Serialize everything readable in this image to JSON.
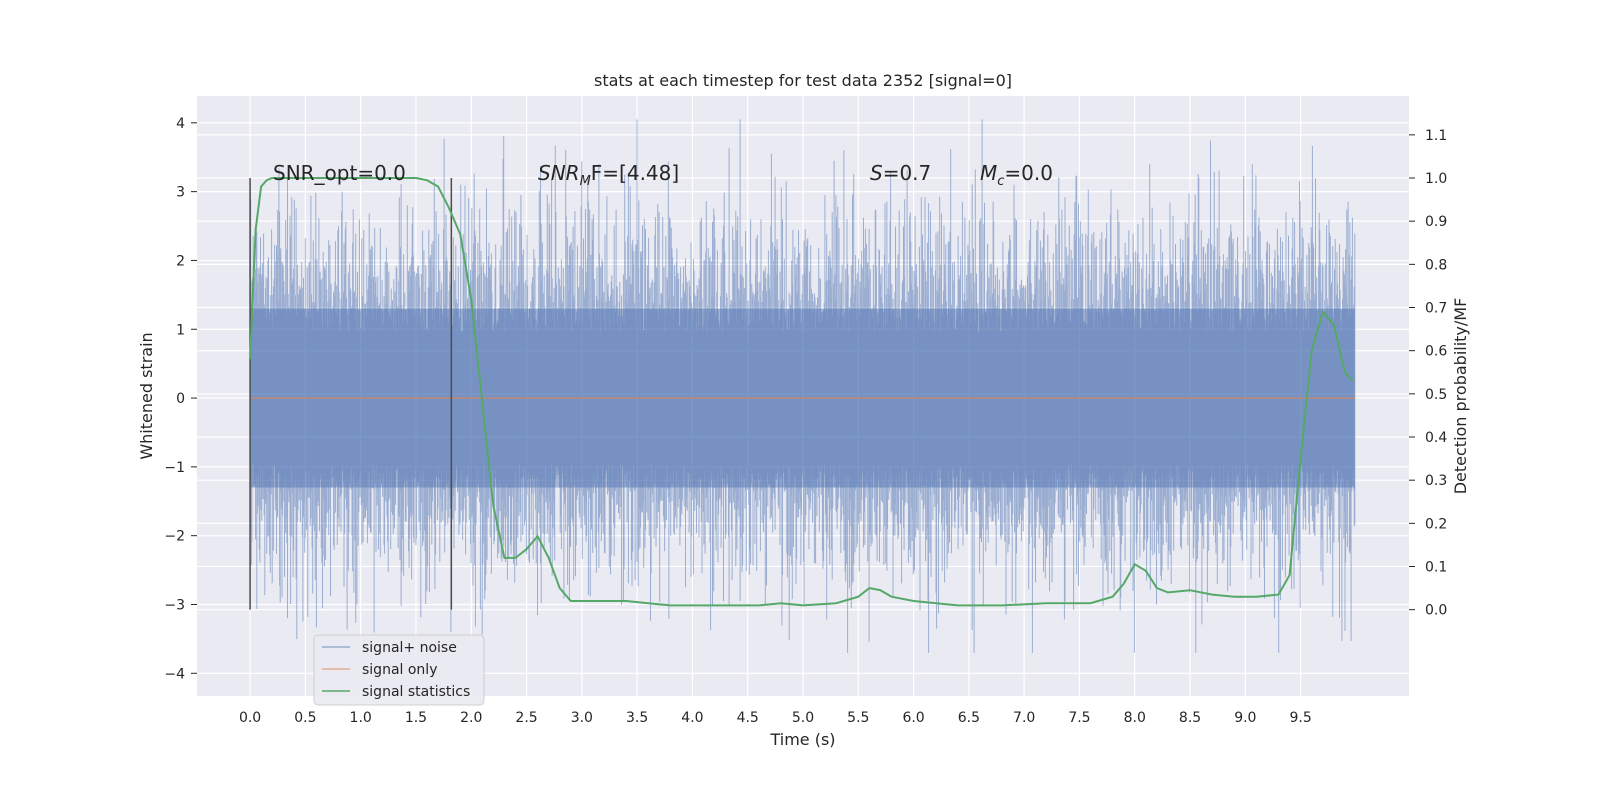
{
  "chart_data": {
    "type": "line",
    "title": "stats at each timestep for test data 2352 [signal=0]",
    "xlabel": "Time (s)",
    "ylabel": "Whitened strain",
    "ylabel_right": "Detection probability/MF",
    "xlim": [
      -0.48,
      10.48
    ],
    "ylim": [
      -4.33,
      4.39
    ],
    "ylim_right": [
      -0.2,
      1.19
    ],
    "x_ticks": [
      "0.0",
      "0.5",
      "1.0",
      "1.5",
      "2.0",
      "2.5",
      "3.0",
      "3.5",
      "4.0",
      "4.5",
      "5.0",
      "5.5",
      "6.0",
      "6.5",
      "7.0",
      "7.5",
      "8.0",
      "8.5",
      "9.0",
      "9.5"
    ],
    "y_ticks": [
      "−4",
      "−3",
      "−2",
      "−1",
      "0",
      "1",
      "2",
      "3",
      "4"
    ],
    "y_ticks_right": [
      "0.0",
      "0.1",
      "0.2",
      "0.3",
      "0.4",
      "0.5",
      "0.6",
      "0.7",
      "0.8",
      "0.9",
      "1.0",
      "1.1"
    ],
    "grid": true,
    "legend_position": "lower-left",
    "vertical_markers": [
      0.0,
      1.82
    ],
    "annotations": {
      "snr_opt": "SNR_opt=0.0",
      "snr_mf_base": "SNR",
      "snr_mf_sub": "M",
      "snr_mf_rest": "F=[4.48]",
      "s_label": "S",
      "s_value": "=0.7",
      "mc_label": "M",
      "mc_sub": "c",
      "mc_value": "=0.0"
    },
    "series": [
      {
        "name": "signal+ noise",
        "color": "#4c72b0",
        "axis": "left",
        "x_range": [
          0.0,
          9.99
        ],
        "amplitude": [
          -3.7,
          4.05
        ]
      },
      {
        "name": "signal only",
        "color": "#dd8452",
        "axis": "left",
        "x": [
          0.0,
          9.99
        ],
        "y": [
          0.0,
          0.0
        ]
      },
      {
        "name": "signal statistics",
        "color": "#55a868",
        "axis": "right",
        "x": [
          0.0,
          0.05,
          0.1,
          0.15,
          0.2,
          0.3,
          0.5,
          1.0,
          1.4,
          1.5,
          1.6,
          1.7,
          1.8,
          1.9,
          2.0,
          2.1,
          2.2,
          2.3,
          2.4,
          2.5,
          2.6,
          2.7,
          2.8,
          2.9,
          3.0,
          3.2,
          3.4,
          3.6,
          3.8,
          4.0,
          4.4,
          4.6,
          4.8,
          5.0,
          5.3,
          5.5,
          5.6,
          5.7,
          5.8,
          6.0,
          6.4,
          6.8,
          7.2,
          7.4,
          7.6,
          7.8,
          7.9,
          8.0,
          8.1,
          8.2,
          8.3,
          8.5,
          8.7,
          8.9,
          9.1,
          9.3,
          9.4,
          9.5,
          9.6,
          9.7,
          9.8,
          9.9,
          9.97
        ],
        "y": [
          0.58,
          0.88,
          0.98,
          0.995,
          1.0,
          1.0,
          1.0,
          1.0,
          1.0,
          1.0,
          0.995,
          0.98,
          0.93,
          0.87,
          0.72,
          0.48,
          0.24,
          0.12,
          0.12,
          0.14,
          0.17,
          0.12,
          0.05,
          0.02,
          0.02,
          0.02,
          0.02,
          0.015,
          0.01,
          0.01,
          0.01,
          0.01,
          0.015,
          0.01,
          0.015,
          0.03,
          0.05,
          0.045,
          0.03,
          0.02,
          0.01,
          0.01,
          0.015,
          0.015,
          0.015,
          0.03,
          0.06,
          0.105,
          0.09,
          0.05,
          0.04,
          0.045,
          0.035,
          0.03,
          0.03,
          0.035,
          0.08,
          0.35,
          0.6,
          0.69,
          0.66,
          0.55,
          0.53
        ]
      }
    ]
  }
}
